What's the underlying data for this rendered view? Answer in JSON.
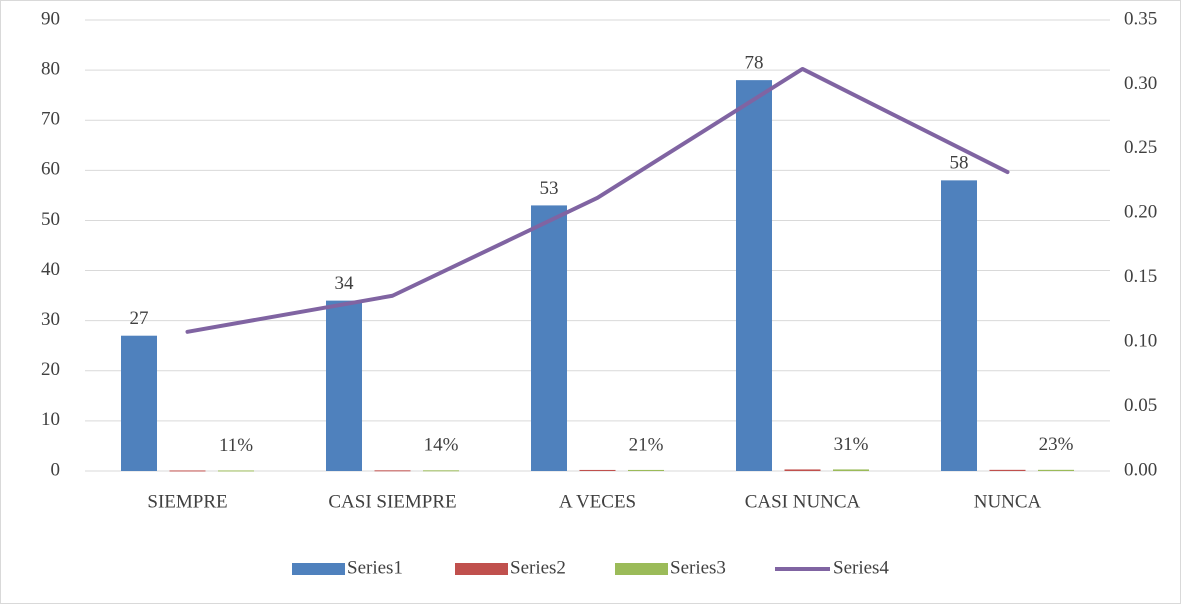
{
  "chart_data": {
    "type": "bar",
    "categories": [
      "SIEMPRE",
      "CASI SIEMPRE",
      "A VECES",
      "CASI NUNCA",
      "NUNCA"
    ],
    "series": [
      {
        "name": "Series1",
        "type": "bar",
        "color": "#4f81bd",
        "values": [
          27,
          34,
          53,
          78,
          58
        ]
      },
      {
        "name": "Series2",
        "type": "bar",
        "color": "#c0504d",
        "values": [
          0.108,
          0.136,
          0.212,
          0.312,
          0.232
        ]
      },
      {
        "name": "Series3",
        "type": "bar",
        "color": "#9bbb59",
        "values": [
          0.108,
          0.136,
          0.212,
          0.312,
          0.232
        ],
        "value_labels": [
          "11%",
          "14%",
          "21%",
          "31%",
          "23%"
        ]
      },
      {
        "name": "Series4",
        "type": "line",
        "axis": "y2",
        "color": "#8064a2",
        "values": [
          0.108,
          0.136,
          0.212,
          0.312,
          0.232
        ]
      }
    ],
    "ylim": [
      0,
      90
    ],
    "yticks": [
      0,
      10,
      20,
      30,
      40,
      50,
      60,
      70,
      80,
      90
    ],
    "y2lim": [
      0,
      0.35
    ],
    "y2ticks": [
      {
        "value": 0,
        "label": "0.00"
      },
      0.05,
      {
        "value": 0.1,
        "label": "0.10"
      },
      0.15,
      {
        "value": 0.2,
        "label": "0.20"
      },
      0.25,
      {
        "value": 0.3,
        "label": "0.30"
      },
      0.35
    ],
    "grid": true,
    "legend": "bottom"
  }
}
